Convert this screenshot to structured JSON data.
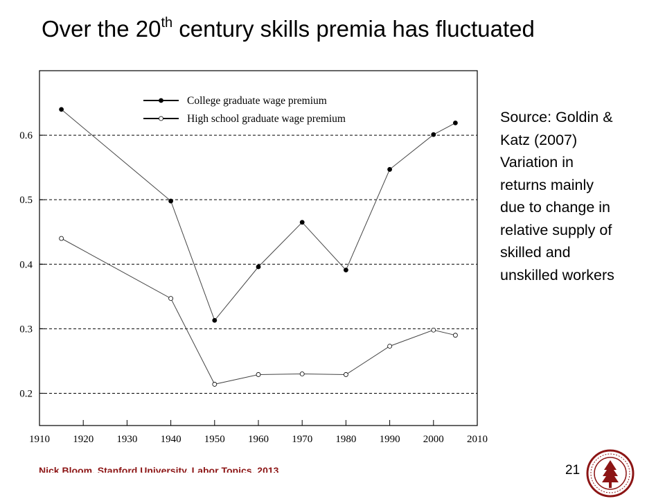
{
  "slide": {
    "title_main": "Over the 20",
    "title_sup": "th",
    "title_rest": " century skills premia has fluctuated",
    "note_lines": [
      "Source: Goldin &",
      "Katz (2007)",
      "Variation in",
      "returns mainly",
      "due to change in",
      "relative supply of",
      "skilled and",
      "unskilled workers"
    ],
    "footer": "Nick Bloom, Stanford University, Labor Topics, 2013",
    "page_number": "21",
    "colors": {
      "footer": "#8c1515",
      "seal": "#8c1515"
    }
  },
  "chart_data": {
    "type": "line",
    "title": "",
    "xlabel": "",
    "ylabel": "",
    "xlim": [
      1910,
      2010
    ],
    "ylim": [
      0.15,
      0.7
    ],
    "x_ticks": [
      "1910",
      "1920",
      "1930",
      "1940",
      "1950",
      "1960",
      "1970",
      "1980",
      "1990",
      "2000",
      "2010"
    ],
    "y_ticks": [
      "0.2",
      "0.3",
      "0.4",
      "0.5",
      "0.6"
    ],
    "grid": "horizontal dashed",
    "legend_position": "top-left",
    "series": [
      {
        "name": "College graduate wage premium",
        "marker": "filled",
        "x": [
          1915,
          1940,
          1950,
          1960,
          1970,
          1980,
          1990,
          2000,
          2005
        ],
        "y": [
          0.64,
          0.498,
          0.313,
          0.396,
          0.465,
          0.391,
          0.547,
          0.601,
          0.619
        ]
      },
      {
        "name": "High school graduate wage premium",
        "marker": "open",
        "x": [
          1915,
          1940,
          1950,
          1960,
          1970,
          1980,
          1990,
          2000,
          2005
        ],
        "y": [
          0.44,
          0.347,
          0.214,
          0.229,
          0.23,
          0.229,
          0.273,
          0.298,
          0.29
        ]
      }
    ]
  }
}
